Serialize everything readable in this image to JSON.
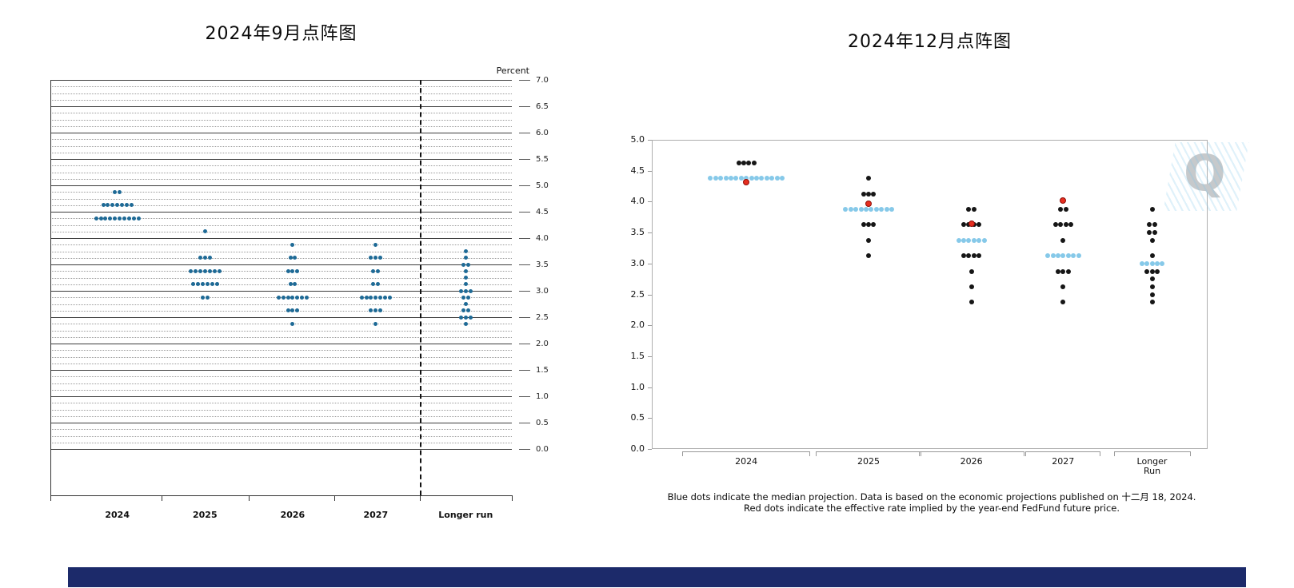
{
  "page": {
    "background": "#ffffff",
    "footer_bar_color": "#1c2a6a"
  },
  "chart_data": [
    {
      "id": "september-2024-dot-plot",
      "type": "scatter",
      "title": "2024年9月点阵图",
      "ylabel": "Percent",
      "ylim": [
        0.0,
        7.0
      ],
      "ytick_step": 0.5,
      "yaxis_side": "right",
      "grid": {
        "solid_lines_every": 0.5,
        "dotted_lines_every": 0.125
      },
      "categories": [
        "2024",
        "2025",
        "2026",
        "2027",
        "Longer run"
      ],
      "dashed_separator_before_last_category": true,
      "dot_color": "#1e6a96",
      "dots": {
        "2024": [
          [
            4.875,
            2
          ],
          [
            4.625,
            7
          ],
          [
            4.375,
            10
          ]
        ],
        "2025": [
          [
            4.125,
            1
          ],
          [
            3.625,
            3
          ],
          [
            3.375,
            7
          ],
          [
            3.125,
            6
          ],
          [
            2.875,
            2
          ]
        ],
        "2026": [
          [
            3.875,
            1
          ],
          [
            3.625,
            2
          ],
          [
            3.375,
            3
          ],
          [
            3.125,
            2
          ],
          [
            2.875,
            7
          ],
          [
            2.625,
            3
          ],
          [
            2.375,
            1
          ]
        ],
        "2027": [
          [
            3.875,
            1
          ],
          [
            3.625,
            3
          ],
          [
            3.375,
            2
          ],
          [
            3.125,
            2
          ],
          [
            2.875,
            7
          ],
          [
            2.625,
            3
          ],
          [
            2.375,
            1
          ]
        ],
        "Longer run": [
          [
            3.75,
            1
          ],
          [
            3.625,
            1
          ],
          [
            3.5,
            2
          ],
          [
            3.375,
            1
          ],
          [
            3.25,
            1
          ],
          [
            3.125,
            1
          ],
          [
            3.0,
            3
          ],
          [
            2.875,
            2
          ],
          [
            2.75,
            1
          ],
          [
            2.625,
            2
          ],
          [
            2.5,
            3
          ],
          [
            2.375,
            1
          ]
        ]
      }
    },
    {
      "id": "december-2024-dot-plot",
      "type": "scatter",
      "title": "2024年12月点阵图",
      "ylim": [
        0.0,
        5.0
      ],
      "ytick_step": 0.5,
      "yaxis_side": "left",
      "categories": [
        "2024",
        "2025",
        "2026",
        "2027",
        "Longer\nRun"
      ],
      "dot_color": "#161616",
      "median_color": "#86c9e9",
      "red_color": "#e62e1f",
      "watermark": "Q",
      "dots": {
        "2024": [
          [
            4.625,
            4
          ],
          [
            4.375,
            15
          ]
        ],
        "2025": [
          [
            4.375,
            1
          ],
          [
            4.125,
            3
          ],
          [
            3.875,
            10
          ],
          [
            3.625,
            3
          ],
          [
            3.375,
            1
          ],
          [
            3.125,
            1
          ]
        ],
        "2026": [
          [
            3.875,
            2
          ],
          [
            3.625,
            4
          ],
          [
            3.375,
            6
          ],
          [
            3.125,
            4
          ],
          [
            2.875,
            1
          ],
          [
            2.625,
            1
          ],
          [
            2.375,
            1
          ]
        ],
        "2027": [
          [
            3.875,
            2
          ],
          [
            3.625,
            4
          ],
          [
            3.375,
            1
          ],
          [
            3.125,
            7
          ],
          [
            2.875,
            3
          ],
          [
            2.625,
            1
          ],
          [
            2.375,
            1
          ]
        ],
        "Longer\nRun": [
          [
            3.875,
            1
          ],
          [
            3.625,
            2
          ],
          [
            3.5,
            2
          ],
          [
            3.375,
            1
          ],
          [
            3.125,
            1
          ],
          [
            3.0,
            5
          ],
          [
            2.875,
            3
          ],
          [
            2.75,
            1
          ],
          [
            2.625,
            1
          ],
          [
            2.5,
            1
          ],
          [
            2.375,
            1
          ]
        ]
      },
      "medians": {
        "2024": 4.375,
        "2025": 3.875,
        "2026": 3.375,
        "2027": 3.125,
        "Longer\nRun": 3.0
      },
      "red_dots": {
        "2024": 4.32,
        "2025": 3.97,
        "2026": 3.65,
        "2027": 4.02
      },
      "caption_line1": "Blue dots indicate the median projection. Data is based on the economic projections published on 十二月 18, 2024.",
      "caption_line2": "Red dots indicate the effective rate implied by the year-end FedFund future price."
    }
  ]
}
